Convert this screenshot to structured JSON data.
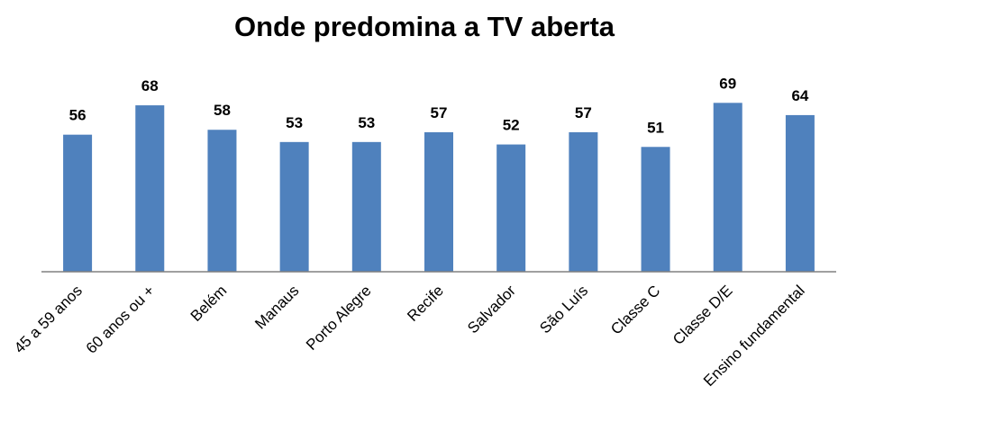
{
  "chart_data": {
    "type": "bar",
    "title": "Onde predomina a TV aberta",
    "xlabel": "",
    "ylabel": "",
    "categories": [
      "45 a 59 anos",
      "60 anos ou +",
      "Belém",
      "Manaus",
      "Porto Alegre",
      "Recife",
      "Salvador",
      "São Luís",
      "Classe C",
      "Classe D/E",
      "Ensino fundamental"
    ],
    "values": [
      56,
      68,
      58,
      53,
      53,
      57,
      52,
      57,
      51,
      69,
      64
    ],
    "ylim": [
      0,
      80
    ],
    "grid": false,
    "legend": "none",
    "bar_color": "#4f81bd"
  }
}
